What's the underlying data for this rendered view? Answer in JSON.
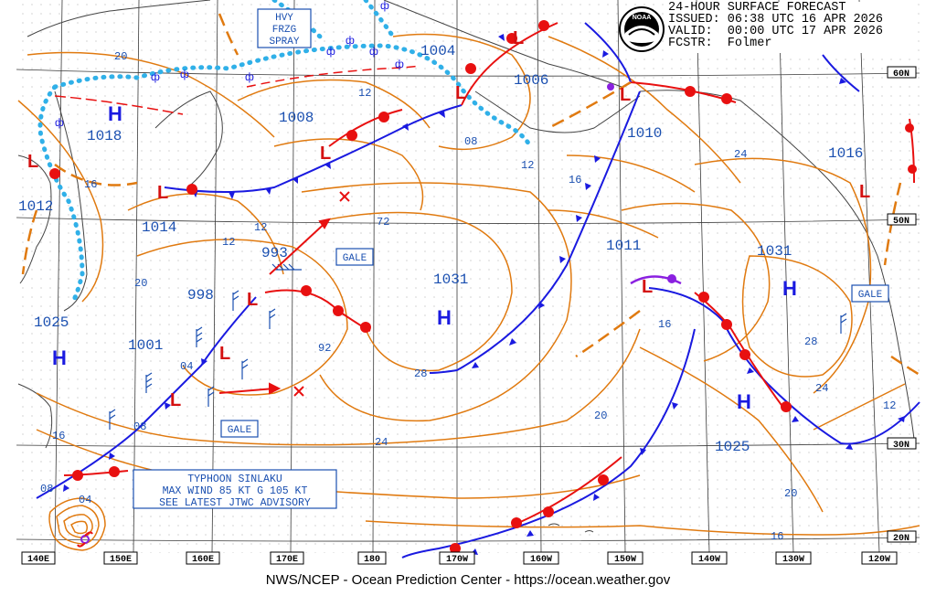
{
  "header": {
    "line1": "24-HOUR SURFACE FORECAST",
    "line2": "ISSUED: 06:38 UTC 16 APR 2026",
    "line3": "VALID:  00:00 UTC 17 APR 2026",
    "line4": "FCSTR:  Folmer"
  },
  "footer": "NWS/NCEP - Ocean Prediction Center - https://ocean.weather.gov",
  "logo_text": "NOAA",
  "pressure_centers": [
    {
      "type": "H",
      "value": "1018"
    },
    {
      "type": "L",
      "value": "1012"
    },
    {
      "type": "L",
      "value": "1014"
    },
    {
      "type": "L",
      "value": "1008"
    },
    {
      "type": "L",
      "value": "1004"
    },
    {
      "type": "L",
      "value": "1006"
    },
    {
      "type": "L",
      "value": "1010"
    },
    {
      "type": "H",
      "value": "1025"
    },
    {
      "type": "L",
      "value": "993"
    },
    {
      "type": "L",
      "value": "998"
    },
    {
      "type": "L",
      "value": "1001"
    },
    {
      "type": "H",
      "value": "1031"
    },
    {
      "type": "L",
      "value": "1011"
    },
    {
      "type": "H",
      "value": "1031"
    },
    {
      "type": "H",
      "value": "1025"
    },
    {
      "type": "L",
      "value": "1016"
    }
  ],
  "isobar_labels": [
    "20",
    "16",
    "12",
    "12",
    "08",
    "12",
    "16",
    "24",
    "72",
    "12",
    "20",
    "04",
    "08",
    "92",
    "16",
    "28",
    "24",
    "20",
    "28",
    "24",
    "20",
    "16",
    "12",
    "04",
    "08"
  ],
  "boxes": {
    "frzg_spray": [
      "HVY",
      "FRZG",
      "SPRAY"
    ],
    "gale": [
      "GALE",
      "GALE",
      "GALE"
    ],
    "typhoon": [
      "TYPHOON SINLAKU",
      "MAX WIND 85 KT G 105 KT",
      "SEE LATEST JTWC ADVISORY"
    ]
  },
  "lat_labels": [
    "60N",
    "50N",
    "30N",
    "20N"
  ],
  "lon_labels": [
    "140E",
    "150E",
    "160E",
    "170E",
    "180",
    "170W",
    "160W",
    "150W",
    "140W",
    "130W",
    "120W"
  ],
  "colors": {
    "isobar": "#e07a10",
    "cold_front": "#1a1ae0",
    "warm_front": "#e81010",
    "occluded": "#8a20e0",
    "ice_edge": "#30b0e8",
    "text_box": "#1a4fb0",
    "grid": "#3a3a3a",
    "coast": "#444444"
  }
}
